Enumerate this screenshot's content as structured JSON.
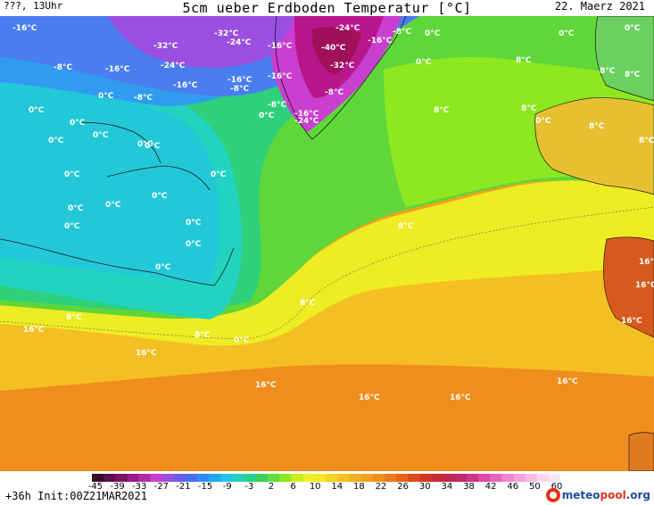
{
  "header": {
    "left": "???, 13Uhr",
    "title": "5cm ueber Erdboden Temperatur [°C]",
    "date": "22. Maerz 2021"
  },
  "footer": {
    "run_info": "+36h  Init:00Z21MAR2021",
    "logo_main": "meteo",
    "logo_accent": "pool",
    "logo_suffix": ".org"
  },
  "colorbar": {
    "ticks": [
      "-45",
      "-39",
      "-33",
      "-27",
      "-21",
      "-15",
      "-9",
      "-3",
      "2",
      "6",
      "10",
      "14",
      "18",
      "22",
      "26",
      "30",
      "34",
      "38",
      "42",
      "46",
      "50",
      "60"
    ],
    "colors": [
      "#3a0a2a",
      "#5c0d4a",
      "#7c1062",
      "#9b1a86",
      "#b52aa8",
      "#c93fd0",
      "#9b4fe0",
      "#6d5ce8",
      "#4a6ef0",
      "#2f8cf2",
      "#23a8ef",
      "#1fc4e6",
      "#22d3c0",
      "#2ad08a",
      "#3cd05a",
      "#60dd3a",
      "#8ee820",
      "#c6ee18",
      "#eef020",
      "#f6e622",
      "#f5d320",
      "#f4c21f",
      "#f3b11e",
      "#f2a01d",
      "#f18e1c",
      "#ee7a1b",
      "#e9621c",
      "#e14a1f",
      "#d63422",
      "#c92a34",
      "#c02650",
      "#c3286c",
      "#d2348c",
      "#e048a8",
      "#ea64bf",
      "#f184cf",
      "#f4a2dc",
      "#f6bee6",
      "#f8d6ee",
      "#f9e6f4"
    ]
  },
  "labels": [
    {
      "t": "-16°C",
      "c": "blue"
    },
    {
      "t": "-32°C",
      "c": "purple"
    },
    {
      "t": "-32°C",
      "c": "purple"
    },
    {
      "t": "-24°C",
      "c": "purple"
    },
    {
      "t": "-16°C",
      "c": "blue"
    },
    {
      "t": "-24°C",
      "c": "purple"
    },
    {
      "t": "-16°C",
      "c": "blue"
    },
    {
      "t": "0°C",
      "c": "cyan"
    },
    {
      "t": "-8°C",
      "c": "blue"
    },
    {
      "t": "-16°C",
      "c": "blue"
    },
    {
      "t": "-24°C",
      "c": "purple"
    },
    {
      "t": "-40°C",
      "c": "purple"
    },
    {
      "t": "-8°C",
      "c": "blue"
    },
    {
      "t": "0°C",
      "c": "cyan"
    },
    {
      "t": "0°C",
      "c": "cyan"
    },
    {
      "t": "-16°C",
      "c": "blue"
    },
    {
      "t": "-16°C",
      "c": "blue"
    },
    {
      "t": "-8°C",
      "c": "blue"
    },
    {
      "t": "-16°C",
      "c": "blue"
    },
    {
      "t": "-32°C",
      "c": "purple"
    },
    {
      "t": "8°C",
      "c": "green"
    },
    {
      "t": "8°C",
      "c": "green"
    },
    {
      "t": "8°C",
      "c": "green"
    },
    {
      "t": "0°C",
      "c": "cyan"
    },
    {
      "t": "-8°C",
      "c": "blue"
    },
    {
      "t": "-8°C",
      "c": "blue"
    },
    {
      "t": "-8°C",
      "c": "blue"
    },
    {
      "t": "0°C",
      "c": "cyan"
    },
    {
      "t": "-16°C",
      "c": "blue"
    },
    {
      "t": "-24°C",
      "c": "purple"
    },
    {
      "t": "0°C",
      "c": "cyan"
    },
    {
      "t": "8°C",
      "c": "green"
    },
    {
      "t": "8°C",
      "c": "green"
    },
    {
      "t": "0°C",
      "c": "cyan"
    },
    {
      "t": "0°C",
      "c": "cyan"
    },
    {
      "t": "0°C",
      "c": "cyan"
    },
    {
      "t": "8°C",
      "c": "green"
    },
    {
      "t": "8°C",
      "c": "green"
    },
    {
      "t": "0°C",
      "c": "cyan"
    },
    {
      "t": "0°C",
      "c": "cyan"
    },
    {
      "t": "0°C",
      "c": "cyan"
    },
    {
      "t": "0°C",
      "c": "cyan"
    },
    {
      "t": "0°C",
      "c": "cyan"
    },
    {
      "t": "0°C",
      "c": "cyan"
    },
    {
      "t": "0°C",
      "c": "cyan"
    },
    {
      "t": "8°C",
      "c": "green"
    },
    {
      "t": "0°C",
      "c": "cyan"
    },
    {
      "t": "0°C",
      "c": "cyan"
    },
    {
      "t": "0°C",
      "c": "cyan"
    },
    {
      "t": "0°C",
      "c": "cyan"
    },
    {
      "t": "16°C",
      "c": "orange"
    },
    {
      "t": "0°C",
      "c": "cyan"
    },
    {
      "t": "0°C",
      "c": "cyan"
    },
    {
      "t": "8°C",
      "c": "green"
    },
    {
      "t": "16°C",
      "c": "orange"
    },
    {
      "t": "16°C",
      "c": "orange"
    },
    {
      "t": "8°C",
      "c": "green"
    },
    {
      "t": "8°C",
      "c": "green"
    },
    {
      "t": "16°C",
      "c": "orange"
    },
    {
      "t": "0°C",
      "c": "cyan"
    },
    {
      "t": "16°C",
      "c": "orange"
    },
    {
      "t": "16°C",
      "c": "orange"
    },
    {
      "t": "16°C",
      "c": "orange"
    },
    {
      "t": "16°C",
      "c": "orange"
    },
    {
      "t": "16°C",
      "c": "orange"
    }
  ]
}
